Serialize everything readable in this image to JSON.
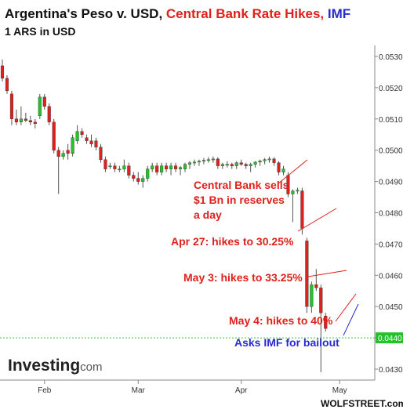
{
  "title": {
    "part1": "Argentina's Peso v. USD, ",
    "part2": "Central Bank Rate Hikes, ",
    "part3": "IMF",
    "color1": "#111111",
    "color2": "#e0201c",
    "color3": "#2a2ad0"
  },
  "subtitle": "1 ARS in USD",
  "credit": "WOLFSTREET.com",
  "logo": {
    "main": "Investing",
    "suffix": ".com"
  },
  "colors": {
    "up": "#27c22a",
    "down": "#e0201c",
    "wick": "#555555",
    "annotation": "#e0201c",
    "annotation_blue": "#2a2ad0",
    "last_price": "#27c22a",
    "axis": "#888888"
  },
  "chart_data": {
    "type": "candlestick",
    "title": "Argentina's Peso v. USD, Central Bank Rate Hikes, IMF",
    "subtitle": "1 ARS in USD",
    "ylim": [
      0.04265,
      0.05335
    ],
    "y_ticks": [
      "0.0530",
      "0.0520",
      "0.0510",
      "0.0500",
      "0.0490",
      "0.0480",
      "0.0470",
      "0.0460",
      "0.0450",
      "0.0440",
      "0.0430"
    ],
    "y_tick_values": [
      0.053,
      0.052,
      0.051,
      0.05,
      0.049,
      0.048,
      0.047,
      0.046,
      0.045,
      0.044,
      0.043
    ],
    "x_labels": [
      {
        "label": "Feb",
        "index": 9
      },
      {
        "label": "Mar",
        "index": 29
      },
      {
        "label": "Apr",
        "index": 51
      },
      {
        "label": "May",
        "index": 72
      }
    ],
    "n_slots": 80,
    "last_price": 0.044,
    "last_price_label": "0.0440",
    "candles": [
      [
        0.0527,
        0.0529,
        0.0522,
        0.0523
      ],
      [
        0.0523,
        0.0524,
        0.0518,
        0.0519
      ],
      [
        0.0518,
        0.0519,
        0.0508,
        0.051
      ],
      [
        0.051,
        0.0513,
        0.0508,
        0.0509
      ],
      [
        0.0509,
        0.0514,
        0.0508,
        0.051
      ],
      [
        0.051,
        0.0512,
        0.0509,
        0.05095
      ],
      [
        0.05095,
        0.0511,
        0.0508,
        0.0509
      ],
      [
        0.0509,
        0.051,
        0.0507,
        0.05085
      ],
      [
        0.0511,
        0.0518,
        0.051,
        0.0517
      ],
      [
        0.0517,
        0.0518,
        0.0513,
        0.0514
      ],
      [
        0.0514,
        0.0515,
        0.0508,
        0.0509
      ],
      [
        0.0509,
        0.051,
        0.0499,
        0.05
      ],
      [
        0.05,
        0.0501,
        0.0486,
        0.0498
      ],
      [
        0.0498,
        0.05,
        0.0497,
        0.0499
      ],
      [
        0.05,
        0.0502,
        0.0497,
        0.0499
      ],
      [
        0.0499,
        0.0505,
        0.0498,
        0.0504
      ],
      [
        0.0503,
        0.0508,
        0.0502,
        0.0506
      ],
      [
        0.0506,
        0.0507,
        0.0504,
        0.0505
      ],
      [
        0.0504,
        0.0505,
        0.0502,
        0.0503
      ],
      [
        0.0503,
        0.0505,
        0.0501,
        0.0502
      ],
      [
        0.0503,
        0.0504,
        0.05,
        0.0501
      ],
      [
        0.0501,
        0.0502,
        0.0496,
        0.0497
      ],
      [
        0.0497,
        0.0498,
        0.0493,
        0.0494
      ],
      [
        0.0495,
        0.0496,
        0.0494,
        0.0495
      ],
      [
        0.0495,
        0.0496,
        0.0493,
        0.0494
      ],
      [
        0.0494,
        0.0495,
        0.0493,
        0.0494
      ],
      [
        0.0494,
        0.0497,
        0.0493,
        0.0495
      ],
      [
        0.0495,
        0.0496,
        0.0491,
        0.0492
      ],
      [
        0.0492,
        0.0493,
        0.049,
        0.0491
      ],
      [
        0.0491,
        0.0493,
        0.0489,
        0.049
      ],
      [
        0.049,
        0.0492,
        0.0488,
        0.0491
      ],
      [
        0.0491,
        0.0495,
        0.049,
        0.0494
      ],
      [
        0.0494,
        0.0496,
        0.0493,
        0.0495
      ],
      [
        0.0495,
        0.0496,
        0.0492,
        0.0493
      ],
      [
        0.0493,
        0.0496,
        0.0492,
        0.0495
      ],
      [
        0.0495,
        0.0496,
        0.0493,
        0.0494
      ],
      [
        0.0494,
        0.0496,
        0.0492,
        0.0495
      ],
      [
        0.0495,
        0.0496,
        0.0493,
        0.0494
      ],
      [
        0.0494,
        0.0495,
        0.0492,
        0.04945
      ],
      [
        0.0494,
        0.0496,
        0.0493,
        0.04955
      ],
      [
        0.04955,
        0.04965,
        0.0494,
        0.0496
      ],
      [
        0.0496,
        0.0497,
        0.0495,
        0.04962
      ],
      [
        0.04962,
        0.0497,
        0.0495,
        0.04965
      ],
      [
        0.04965,
        0.04975,
        0.04955,
        0.04968
      ],
      [
        0.04968,
        0.04978,
        0.0496,
        0.0497
      ],
      [
        0.0497,
        0.0498,
        0.0496,
        0.04972
      ],
      [
        0.04972,
        0.04978,
        0.0494,
        0.0495
      ],
      [
        0.0495,
        0.0496,
        0.0494,
        0.04955
      ],
      [
        0.04955,
        0.04965,
        0.04945,
        0.04955
      ],
      [
        0.04955,
        0.0496,
        0.0494,
        0.0495
      ],
      [
        0.0495,
        0.04965,
        0.0494,
        0.0496
      ],
      [
        0.0496,
        0.0497,
        0.0495,
        0.04955
      ],
      [
        0.04955,
        0.0496,
        0.0494,
        0.0495
      ],
      [
        0.0495,
        0.0496,
        0.0493,
        0.04955
      ],
      [
        0.04955,
        0.04965,
        0.04945,
        0.04962
      ],
      [
        0.04962,
        0.0497,
        0.0495,
        0.04966
      ],
      [
        0.04966,
        0.04975,
        0.04955,
        0.0497
      ],
      [
        0.0497,
        0.0498,
        0.0496,
        0.04972
      ],
      [
        0.04972,
        0.04978,
        0.0495,
        0.0496
      ],
      [
        0.0496,
        0.04965,
        0.0492,
        0.0493
      ],
      [
        0.0493,
        0.0495,
        0.0492,
        0.0494
      ],
      [
        0.0492,
        0.0493,
        0.0485,
        0.0486
      ],
      [
        0.0486,
        0.04875,
        0.0477,
        0.0487
      ],
      [
        0.0487,
        0.0488,
        0.0486,
        0.04872
      ],
      [
        0.0487,
        0.0488,
        0.0473,
        0.0475
      ],
      [
        0.0471,
        0.0472,
        0.0448,
        0.045
      ],
      [
        0.045,
        0.0458,
        0.0448,
        0.0457
      ],
      [
        0.0457,
        0.0462,
        0.0455,
        0.0456
      ],
      [
        0.0456,
        0.0457,
        0.0429,
        0.0448
      ],
      [
        0.0447,
        0.0448,
        0.0442,
        0.0443
      ]
    ]
  },
  "annotations": [
    {
      "id": "central-bank",
      "lines": [
        "Central Bank sells",
        "$1 Bn in reserves",
        "a day"
      ],
      "color": "red"
    },
    {
      "id": "apr27",
      "lines": [
        "Apr 27: hikes to 30.25%"
      ],
      "color": "red"
    },
    {
      "id": "may3",
      "lines": [
        "May 3: hikes to 33.25%"
      ],
      "color": "red"
    },
    {
      "id": "may4",
      "lines": [
        "May 4: hikes to 40%"
      ],
      "color": "red"
    },
    {
      "id": "imf",
      "lines": [
        "Asks IMF for bailout"
      ],
      "color": "blue"
    }
  ]
}
